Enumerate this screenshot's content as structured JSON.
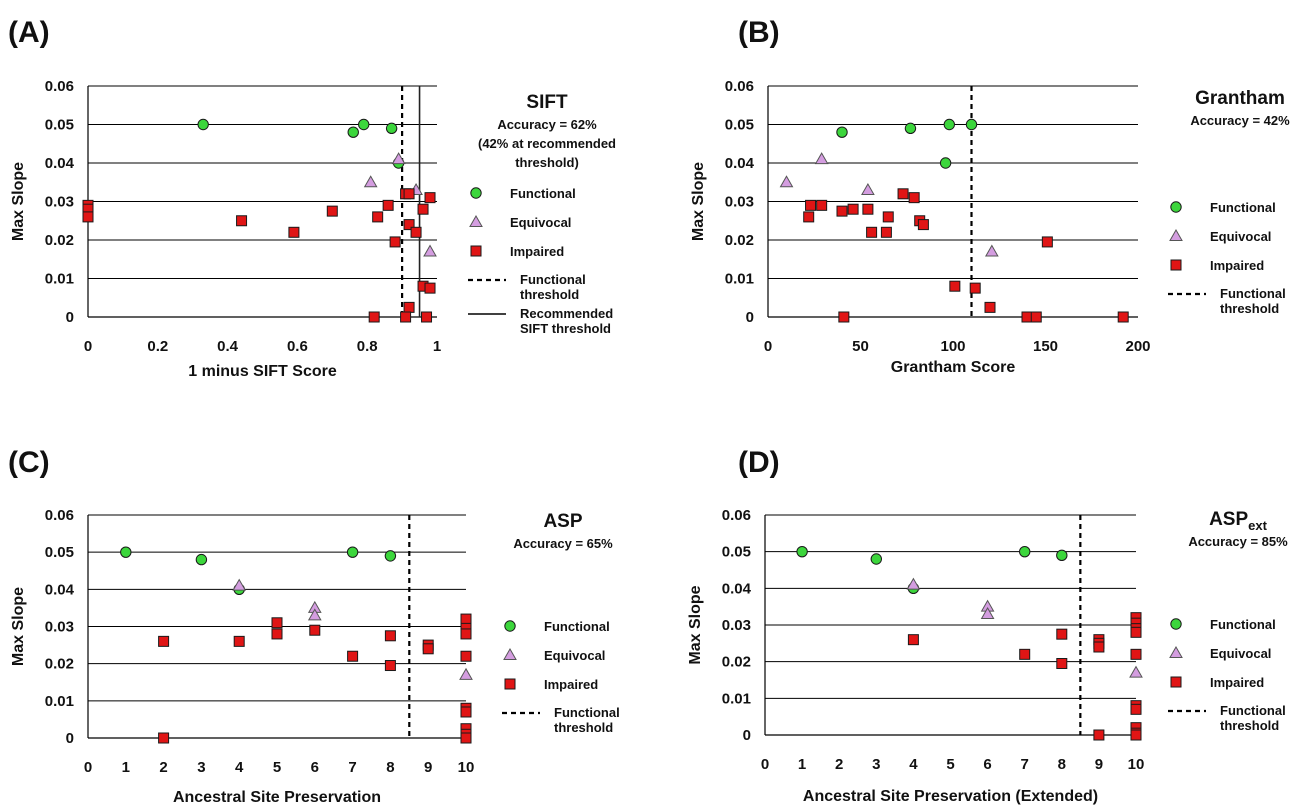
{
  "colors": {
    "functional": "#3cd63c",
    "equivocal": "#d49de0",
    "impaired": "#e01515"
  },
  "legend_labels": {
    "functional": "Functional",
    "equivocal": "Equivocal",
    "impaired": "Impaired",
    "functional_threshold": [
      "Functional",
      "threshold"
    ],
    "recommended_threshold": [
      "Recommended",
      "SIFT threshold"
    ]
  },
  "chart_data": [
    {
      "type": "scatter",
      "panel": "(A)",
      "title": "SIFT",
      "accuracy_lines": [
        "Accuracy = 62%",
        "(42% at recommended",
        "threshold)"
      ],
      "xlabel": "1 minus SIFT Score",
      "ylabel": "Max Slope",
      "xlim": [
        0,
        1
      ],
      "ylim": [
        0,
        0.06
      ],
      "xticks": [
        "0",
        "0.2",
        "0.4",
        "0.6",
        "0.8",
        "1"
      ],
      "yticks": [
        "0",
        "0.01",
        "0.02",
        "0.03",
        "0.04",
        "0.05",
        "0.06"
      ],
      "functional_threshold": 0.9,
      "recommended_threshold": 0.95,
      "legend_items": [
        "functional",
        "equivocal",
        "impaired",
        "functional_threshold",
        "recommended_threshold"
      ],
      "series": [
        {
          "name": "Functional",
          "points": [
            [
              0.33,
              0.05
            ],
            [
              0.76,
              0.048
            ],
            [
              0.79,
              0.05
            ],
            [
              0.87,
              0.049
            ],
            [
              0.89,
              0.04
            ]
          ]
        },
        {
          "name": "Equivocal",
          "points": [
            [
              0.81,
              0.035
            ],
            [
              0.89,
              0.041
            ],
            [
              0.94,
              0.033
            ],
            [
              0.98,
              0.017
            ]
          ]
        },
        {
          "name": "Impaired",
          "points": [
            [
              0,
              0.029
            ],
            [
              0,
              0.028
            ],
            [
              0,
              0.026
            ],
            [
              0.44,
              0.025
            ],
            [
              0.59,
              0.022
            ],
            [
              0.7,
              0.0275
            ],
            [
              0.83,
              0.026
            ],
            [
              0.86,
              0.029
            ],
            [
              0.88,
              0.0195
            ],
            [
              0.91,
              0.032
            ],
            [
              0.92,
              0.032
            ],
            [
              0.92,
              0.024
            ],
            [
              0.94,
              0.022
            ],
            [
              0.96,
              0.028
            ],
            [
              0.98,
              0.031
            ],
            [
              0.92,
              0.0025
            ],
            [
              0.96,
              0.008
            ],
            [
              0.98,
              0.0075
            ],
            [
              0.82,
              0
            ],
            [
              0.91,
              0
            ],
            [
              0.97,
              0
            ]
          ]
        }
      ]
    },
    {
      "type": "scatter",
      "panel": "(B)",
      "title": "Grantham",
      "accuracy_lines": [
        "Accuracy = 42%"
      ],
      "xlabel": "Grantham Score",
      "ylabel": "Max Slope",
      "xlim": [
        0,
        200
      ],
      "ylim": [
        0,
        0.06
      ],
      "xticks": [
        "0",
        "50",
        "100",
        "150",
        "200"
      ],
      "yticks": [
        "0",
        "0.01",
        "0.02",
        "0.03",
        "0.04",
        "0.05",
        "0.06"
      ],
      "functional_threshold": 110,
      "legend_items": [
        "functional",
        "equivocal",
        "impaired",
        "functional_threshold"
      ],
      "series": [
        {
          "name": "Functional",
          "points": [
            [
              40,
              0.048
            ],
            [
              77,
              0.049
            ],
            [
              98,
              0.05
            ],
            [
              110,
              0.05
            ],
            [
              96,
              0.04
            ]
          ]
        },
        {
          "name": "Equivocal",
          "points": [
            [
              10,
              0.035
            ],
            [
              29,
              0.041
            ],
            [
              54,
              0.033
            ],
            [
              121,
              0.017
            ]
          ]
        },
        {
          "name": "Impaired",
          "points": [
            [
              22,
              0.026
            ],
            [
              23,
              0.029
            ],
            [
              29,
              0.029
            ],
            [
              40,
              0.0275
            ],
            [
              46,
              0.028
            ],
            [
              54,
              0.028
            ],
            [
              56,
              0.022
            ],
            [
              64,
              0.022
            ],
            [
              65,
              0.026
            ],
            [
              73,
              0.032
            ],
            [
              79,
              0.031
            ],
            [
              82,
              0.025
            ],
            [
              84,
              0.024
            ],
            [
              101,
              0.008
            ],
            [
              112,
              0.0075
            ],
            [
              120,
              0.0025
            ],
            [
              151,
              0.0195
            ],
            [
              41,
              0
            ],
            [
              140,
              0
            ],
            [
              145,
              0
            ],
            [
              192,
              0
            ]
          ]
        }
      ]
    },
    {
      "type": "scatter",
      "panel": "(C)",
      "title": "ASP",
      "accuracy_lines": [
        "Accuracy = 65%"
      ],
      "xlabel": "Ancestral Site Preservation",
      "ylabel": "Max Slope",
      "xlim": [
        0,
        10
      ],
      "ylim": [
        0,
        0.06
      ],
      "xticks": [
        "0",
        "1",
        "2",
        "3",
        "4",
        "5",
        "6",
        "7",
        "8",
        "9",
        "10"
      ],
      "yticks": [
        "0",
        "0.01",
        "0.02",
        "0.03",
        "0.04",
        "0.05",
        "0.06"
      ],
      "functional_threshold": 8.5,
      "legend_items": [
        "functional",
        "equivocal",
        "impaired",
        "functional_threshold"
      ],
      "series": [
        {
          "name": "Functional",
          "points": [
            [
              1,
              0.05
            ],
            [
              3,
              0.048
            ],
            [
              7,
              0.05
            ],
            [
              8,
              0.049
            ],
            [
              4,
              0.04
            ]
          ]
        },
        {
          "name": "Equivocal",
          "points": [
            [
              4,
              0.041
            ],
            [
              6,
              0.035
            ],
            [
              6,
              0.033
            ],
            [
              10,
              0.017
            ]
          ]
        },
        {
          "name": "Impaired",
          "points": [
            [
              2,
              0.026
            ],
            [
              4,
              0.026
            ],
            [
              5,
              0.031
            ],
            [
              5,
              0.028
            ],
            [
              6,
              0.029
            ],
            [
              7,
              0.022
            ],
            [
              8,
              0.0275
            ],
            [
              8,
              0.0195
            ],
            [
              9,
              0.025
            ],
            [
              9,
              0.024
            ],
            [
              10,
              0.032
            ],
            [
              10,
              0.0295
            ],
            [
              10,
              0.028
            ],
            [
              10,
              0.022
            ],
            [
              10,
              0.008
            ],
            [
              10,
              0.007
            ],
            [
              10,
              0.0025
            ],
            [
              10,
              0.001
            ],
            [
              10,
              0
            ],
            [
              2,
              0
            ]
          ]
        }
      ]
    },
    {
      "type": "scatter",
      "panel": "(D)",
      "title": "ASP",
      "title_subscript": "ext",
      "accuracy_lines": [
        "Accuracy = 85%"
      ],
      "xlabel": "Ancestral Site Preservation (Extended)",
      "ylabel": "Max Slope",
      "xlim": [
        0,
        10
      ],
      "ylim": [
        0,
        0.06
      ],
      "xticks": [
        "0",
        "1",
        "2",
        "3",
        "4",
        "5",
        "6",
        "7",
        "8",
        "9",
        "10"
      ],
      "yticks": [
        "0",
        "0.01",
        "0.02",
        "0.03",
        "0.04",
        "0.05",
        "0.06"
      ],
      "functional_threshold": 8.5,
      "legend_items": [
        "functional",
        "equivocal",
        "impaired",
        "functional_threshold"
      ],
      "series": [
        {
          "name": "Functional",
          "points": [
            [
              1,
              0.05
            ],
            [
              3,
              0.048
            ],
            [
              7,
              0.05
            ],
            [
              8,
              0.049
            ],
            [
              4,
              0.04
            ]
          ]
        },
        {
          "name": "Equivocal",
          "points": [
            [
              4,
              0.041
            ],
            [
              6,
              0.035
            ],
            [
              6,
              0.033
            ],
            [
              10,
              0.017
            ]
          ]
        },
        {
          "name": "Impaired",
          "points": [
            [
              4,
              0.026
            ],
            [
              7,
              0.022
            ],
            [
              8,
              0.0275
            ],
            [
              8,
              0.0195
            ],
            [
              9,
              0.026
            ],
            [
              9,
              0.025
            ],
            [
              9,
              0.024
            ],
            [
              9,
              0
            ],
            [
              10,
              0.032
            ],
            [
              10,
              0.0305
            ],
            [
              10,
              0.029
            ],
            [
              10,
              0.028
            ],
            [
              10,
              0.022
            ],
            [
              10,
              0.008
            ],
            [
              10,
              0.007
            ],
            [
              10,
              0.002
            ],
            [
              10,
              0.0005
            ],
            [
              10,
              0
            ]
          ]
        }
      ]
    }
  ]
}
